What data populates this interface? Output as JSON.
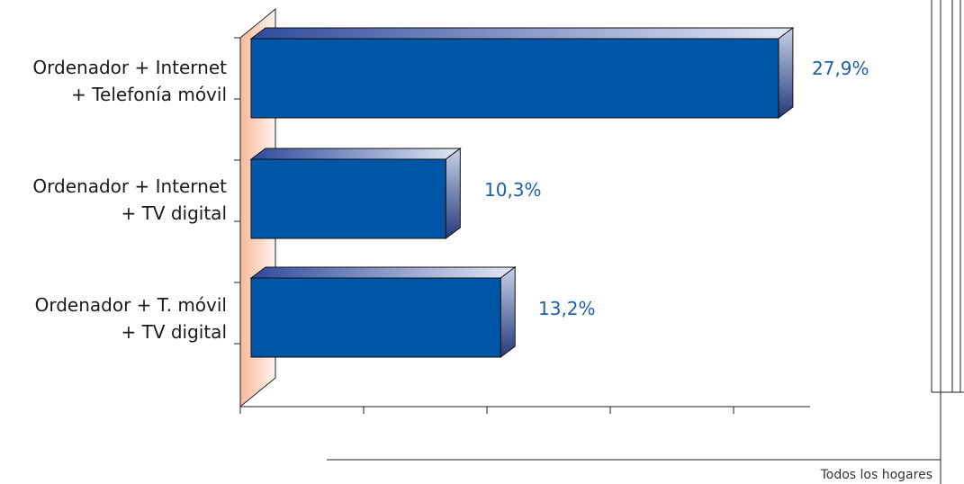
{
  "chart_data": {
    "type": "bar",
    "orientation": "horizontal",
    "categories": [
      [
        "Ordenador + Internet",
        "+ Telefonía móvil"
      ],
      [
        "Ordenador + Internet",
        "+ TV digital"
      ],
      [
        "Ordenador + T. móvil",
        "+ TV digital"
      ]
    ],
    "values": [
      27.9,
      10.3,
      13.2
    ],
    "value_labels": [
      "27,9%",
      "10,3%",
      "13,2%"
    ],
    "xlim": [
      0,
      30
    ],
    "grid": false,
    "bar_color": "#0056a6",
    "label_color": "#1f5fa8"
  },
  "footer": {
    "caption": "Todos los hogares"
  }
}
